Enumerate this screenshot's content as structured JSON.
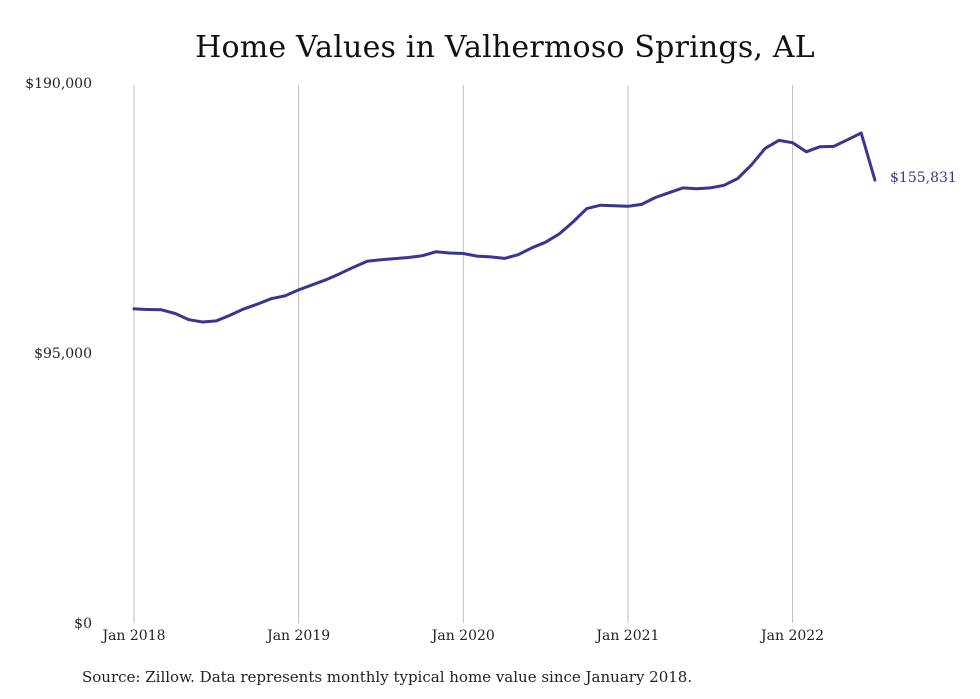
{
  "title": "Home Values in Valhermoso Springs, AL",
  "source": "Source: Zillow. Data represents monthly typical home value since January 2018.",
  "colors": {
    "line": "#3b3491",
    "grid": "#bdbdbd"
  },
  "chart_data": {
    "type": "line",
    "title": "Home Values in Valhermoso Springs, AL",
    "xlabel": "",
    "ylabel": "",
    "ylim": [
      0,
      190000
    ],
    "grid": "vertical",
    "y_ticks": [
      {
        "value": 190000,
        "label": "$190,000"
      },
      {
        "value": 95000,
        "label": "$95,000"
      },
      {
        "value": 0,
        "label": "$0"
      }
    ],
    "x_ticks": [
      {
        "month": 0,
        "label": "Jan 2018"
      },
      {
        "month": 12,
        "label": "Jan 2019"
      },
      {
        "month": 24,
        "label": "Jan 2020"
      },
      {
        "month": 36,
        "label": "Jan 2021"
      },
      {
        "month": 48,
        "label": "Jan 2022"
      }
    ],
    "x": [
      "2018-01",
      "2018-02",
      "2018-03",
      "2018-04",
      "2018-05",
      "2018-06",
      "2018-07",
      "2018-08",
      "2018-09",
      "2018-10",
      "2018-11",
      "2018-12",
      "2019-01",
      "2019-02",
      "2019-03",
      "2019-04",
      "2019-05",
      "2019-06",
      "2019-07",
      "2019-08",
      "2019-09",
      "2019-10",
      "2019-11",
      "2019-12",
      "2020-01",
      "2020-02",
      "2020-03",
      "2020-04",
      "2020-05",
      "2020-06",
      "2020-07",
      "2020-08",
      "2020-09",
      "2020-10",
      "2020-11",
      "2020-12",
      "2021-01",
      "2021-02",
      "2021-03",
      "2021-04",
      "2021-05",
      "2021-06",
      "2021-07",
      "2021-08",
      "2021-09",
      "2021-10",
      "2021-11",
      "2021-12",
      "2022-01",
      "2022-02",
      "2022-03",
      "2022-04",
      "2022-05",
      "2022-06",
      "2022-07"
    ],
    "series": [
      {
        "values": [
          110500,
          110300,
          110200,
          108900,
          106700,
          105900,
          106300,
          108300,
          110500,
          112200,
          114100,
          115100,
          117200,
          119000,
          120800,
          122900,
          125200,
          127300,
          127800,
          128200,
          128600,
          129200,
          130600,
          130200,
          130000,
          129100,
          128800,
          128300,
          129600,
          132000,
          134000,
          136900,
          141100,
          145800,
          147000,
          146800,
          146600,
          147300,
          149700,
          151400,
          153100,
          152800,
          153100,
          154000,
          156400,
          161200,
          167000,
          169800,
          169000,
          165800,
          167600,
          167700,
          170000,
          172400,
          155831
        ],
        "end_label": "$155,831"
      }
    ]
  }
}
